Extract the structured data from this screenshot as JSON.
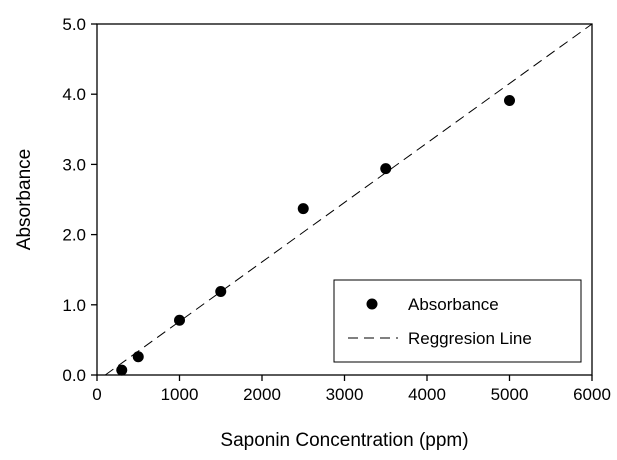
{
  "chart_data": {
    "type": "scatter",
    "title": "",
    "xlabel": "Saponin Concentration (ppm)",
    "ylabel": "Absorbance",
    "xlim": [
      0,
      6000
    ],
    "ylim": [
      0,
      5.0
    ],
    "x_ticks": [
      0,
      1000,
      2000,
      3000,
      4000,
      5000,
      6000
    ],
    "x_tick_labels": [
      "0",
      "1000",
      "2000",
      "3000",
      "4000",
      "5000",
      "6000"
    ],
    "y_ticks": [
      0,
      1,
      2,
      3,
      4,
      5
    ],
    "y_tick_labels": [
      "0.0",
      "1.0",
      "2.0",
      "3.0",
      "4.0",
      "5.0"
    ],
    "grid": false,
    "legend_position": "bottom-right",
    "series": [
      {
        "name": "Absorbance",
        "kind": "scatter",
        "color": "#000000",
        "x": [
          300,
          500,
          1000,
          1500,
          2500,
          3500,
          5000
        ],
        "y": [
          0.07,
          0.26,
          0.78,
          1.19,
          2.37,
          2.94,
          3.91
        ]
      },
      {
        "name": "Reggresion Line",
        "kind": "line",
        "style": "dashed",
        "color": "#000000",
        "x": [
          100,
          6000
        ],
        "y": [
          0.0,
          5.0
        ]
      }
    ]
  }
}
